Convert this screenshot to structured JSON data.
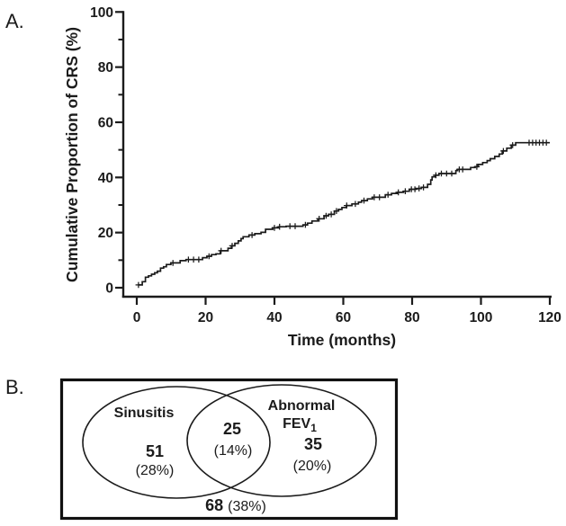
{
  "figure": {
    "panelA_label": "A.",
    "panelB_label": "B."
  },
  "ink_color": "#1b1b1b",
  "chart_data": {
    "type": "line",
    "subtype": "kaplan-meier-cumulative-incidence-step",
    "title": "",
    "xlabel": "Time (months)",
    "ylabel": "Cumulative Proportion of CRS (%)",
    "xlim": [
      0,
      120
    ],
    "ylim": [
      0,
      100
    ],
    "xticks": [
      0,
      20,
      40,
      60,
      80,
      100,
      120
    ],
    "yticks": [
      0,
      20,
      40,
      60,
      80,
      100
    ],
    "y_minor_ticks": [
      10,
      30,
      50,
      70,
      90
    ],
    "grid": false,
    "legend_position": "none",
    "line_color": "#1b1b1b",
    "end_time": 120,
    "final_value_pct": 52.6,
    "steps": [
      [
        0.5,
        1
      ],
      [
        1.6,
        2.2
      ],
      [
        2.5,
        3.8
      ],
      [
        3.4,
        4.3
      ],
      [
        4.3,
        4.9
      ],
      [
        5.2,
        5.4
      ],
      [
        6,
        6
      ],
      [
        6.9,
        7.1
      ],
      [
        7.8,
        7.6
      ],
      [
        8.6,
        8.4
      ],
      [
        9.9,
        9
      ],
      [
        12.6,
        9.8
      ],
      [
        14.3,
        10.2
      ],
      [
        19.1,
        10.9
      ],
      [
        20.4,
        11.4
      ],
      [
        21.7,
        12
      ],
      [
        23,
        12.3
      ],
      [
        24.3,
        13.4
      ],
      [
        26.5,
        14.3
      ],
      [
        27.5,
        15.2
      ],
      [
        28.5,
        16.1
      ],
      [
        29.5,
        17
      ],
      [
        30.3,
        17.8
      ],
      [
        30.9,
        18.5
      ],
      [
        32.6,
        19.1
      ],
      [
        34.3,
        19.6
      ],
      [
        36.1,
        20.1
      ],
      [
        37.4,
        21.2
      ],
      [
        39.5,
        21.7
      ],
      [
        41.3,
        22.1
      ],
      [
        43.4,
        22.3
      ],
      [
        48.3,
        22.8
      ],
      [
        49.6,
        23.4
      ],
      [
        50.9,
        24.2
      ],
      [
        52.6,
        25
      ],
      [
        54.4,
        26.1
      ],
      [
        55.7,
        26.6
      ],
      [
        57.4,
        27.8
      ],
      [
        58.6,
        28.4
      ],
      [
        59.6,
        29.1
      ],
      [
        60.9,
        29.8
      ],
      [
        62.5,
        30.4
      ],
      [
        64.4,
        31
      ],
      [
        65.3,
        31.6
      ],
      [
        67,
        32.2
      ],
      [
        68.5,
        32.8
      ],
      [
        72.2,
        33.7
      ],
      [
        74,
        34.2
      ],
      [
        75.7,
        34.6
      ],
      [
        77.5,
        35
      ],
      [
        79.2,
        35.7
      ],
      [
        81,
        36
      ],
      [
        82.7,
        36.4
      ],
      [
        84.5,
        37.5
      ],
      [
        85.4,
        39.1
      ],
      [
        85.8,
        40.2
      ],
      [
        86.7,
        40.8
      ],
      [
        87.8,
        41.4
      ],
      [
        92.7,
        42.5
      ],
      [
        93.2,
        42.9
      ],
      [
        97,
        43.6
      ],
      [
        98.3,
        43.9
      ],
      [
        99.2,
        44.7
      ],
      [
        100.5,
        45.4
      ],
      [
        101.8,
        46.1
      ],
      [
        102.7,
        46.8
      ],
      [
        104,
        47.6
      ],
      [
        105.3,
        48.5
      ],
      [
        106.2,
        49.6
      ],
      [
        107.5,
        50.6
      ],
      [
        108.8,
        51.7
      ],
      [
        110.1,
        52.6
      ]
    ],
    "censor_times": [
      0.5,
      10.5,
      15,
      16.5,
      18,
      21,
      24.5,
      27.7,
      33.5,
      40,
      41.5,
      44.5,
      46,
      49,
      53,
      55,
      56.5,
      58,
      61,
      63.5,
      66,
      69,
      70.5,
      73,
      76,
      78,
      79.8,
      80.8,
      82,
      83.3,
      86.9,
      88.5,
      90,
      91.5,
      93.7,
      94.7,
      98.8,
      106.5,
      109.2,
      114,
      115,
      116,
      117,
      118,
      119
    ]
  },
  "venn": {
    "left_label": "Sinusitis",
    "right_label_line1": "Abnormal",
    "right_label_line2_base": "FEV",
    "right_label_line2_sub": "1",
    "left_count": "51",
    "left_pct": "(28%)",
    "overlap_count": "25",
    "overlap_pct": "(14%)",
    "right_count": "35",
    "right_pct": "(20%)",
    "total_count": "68",
    "total_pct": "(38%)"
  }
}
